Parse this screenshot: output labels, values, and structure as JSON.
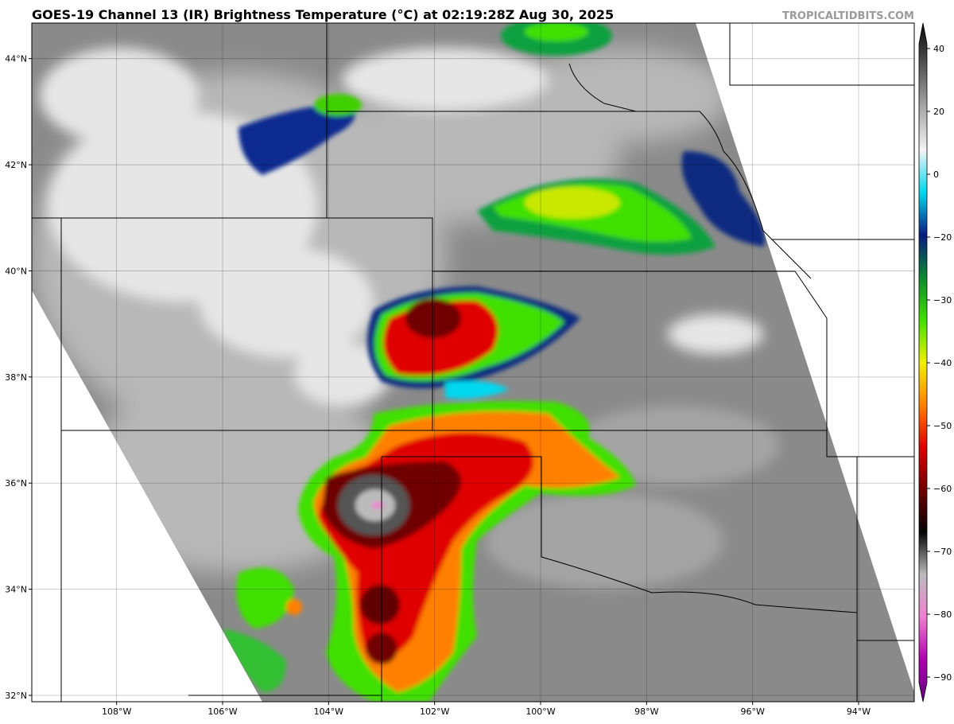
{
  "header": {
    "title": "GOES-19 Channel 13 (IR) Brightness Temperature (°C) at 02:19:28Z Aug 30, 2025",
    "watermark": "TROPICALTIDBITS.COM"
  },
  "map": {
    "lonlim": [
      -109.6,
      -92.95
    ],
    "latlim": [
      31.88,
      44.67
    ],
    "grid": true,
    "lonticks": [
      {
        "value": -108,
        "label": "108°W"
      },
      {
        "value": -106,
        "label": "106°W"
      },
      {
        "value": -104,
        "label": "104°W"
      },
      {
        "value": -102,
        "label": "102°W"
      },
      {
        "value": -100,
        "label": "100°W"
      },
      {
        "value": -98,
        "label": "98°W"
      },
      {
        "value": -96,
        "label": "96°W"
      },
      {
        "value": -94,
        "label": "94°W"
      }
    ],
    "latticks": [
      {
        "value": 32,
        "label": "32°N"
      },
      {
        "value": 34,
        "label": "34°N"
      },
      {
        "value": 36,
        "label": "36°N"
      },
      {
        "value": 38,
        "label": "38°N"
      },
      {
        "value": 40,
        "label": "40°N"
      },
      {
        "value": 42,
        "label": "42°N"
      },
      {
        "value": 44,
        "label": "44°N"
      }
    ]
  },
  "colorbar": {
    "ticks": [
      40,
      20,
      0,
      {
        "value": -20,
        "label": "−20"
      },
      {
        "value": -30,
        "label": "−30"
      },
      {
        "value": -40,
        "label": "−40"
      },
      {
        "value": -50,
        "label": "−50"
      },
      {
        "value": -60,
        "label": "−60"
      },
      {
        "value": -70,
        "label": "−70"
      },
      {
        "value": -80,
        "label": "−80"
      },
      {
        "value": -90,
        "label": "−90"
      }
    ],
    "colors": [
      "#0a0a0a",
      "#555555",
      "#a8a8a8",
      "#f4f4f4",
      "#00d8f0",
      "#0a1a80",
      "#0a8a30",
      "#40e000",
      "#f0f000",
      "#ff8000",
      "#e00000",
      "#700000",
      "#050505",
      "#bbbbbb",
      "#f080d0",
      "#b000b0",
      "#600080"
    ]
  }
}
